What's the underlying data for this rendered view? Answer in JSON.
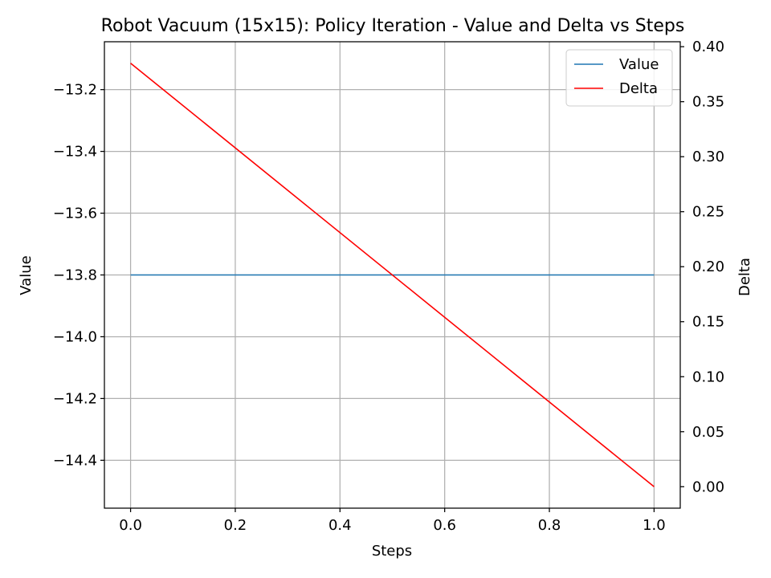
{
  "chart_data": {
    "type": "line",
    "title": "Robot Vacuum (15x15): Policy Iteration - Value and Delta vs Steps",
    "xlabel": "Steps",
    "ylabel_left": "Value",
    "ylabel_right": "Delta",
    "xlim": [
      -0.05,
      1.05
    ],
    "ylim_left": [
      -14.555,
      -13.045
    ],
    "ylim_right": [
      -0.0195,
      0.4045
    ],
    "x_ticks": [
      0.0,
      0.2,
      0.4,
      0.6,
      0.8,
      1.0
    ],
    "x_tick_labels": [
      "0.0",
      "0.2",
      "0.4",
      "0.6",
      "0.8",
      "1.0"
    ],
    "y_left_ticks": [
      -13.2,
      -13.4,
      -13.6,
      -13.8,
      -14.0,
      -14.2,
      -14.4
    ],
    "y_left_tick_labels": [
      "−13.2",
      "−13.4",
      "−13.6",
      "−13.8",
      "−14.0",
      "−14.2",
      "−14.4"
    ],
    "y_right_ticks": [
      0.4,
      0.35,
      0.3,
      0.25,
      0.2,
      0.15,
      0.1,
      0.05,
      0.0
    ],
    "y_right_tick_labels": [
      "0.40",
      "0.35",
      "0.30",
      "0.25",
      "0.20",
      "0.15",
      "0.10",
      "0.05",
      "0.00"
    ],
    "grid": true,
    "legend_position": "top-right",
    "series": [
      {
        "name": "Value",
        "axis": "left",
        "color": "#1f77b4",
        "x": [
          0,
          1
        ],
        "y": [
          -13.8,
          -13.8
        ]
      },
      {
        "name": "Delta",
        "axis": "right",
        "color": "#ff0000",
        "x": [
          0,
          1
        ],
        "y": [
          0.385,
          0.0
        ]
      }
    ]
  }
}
